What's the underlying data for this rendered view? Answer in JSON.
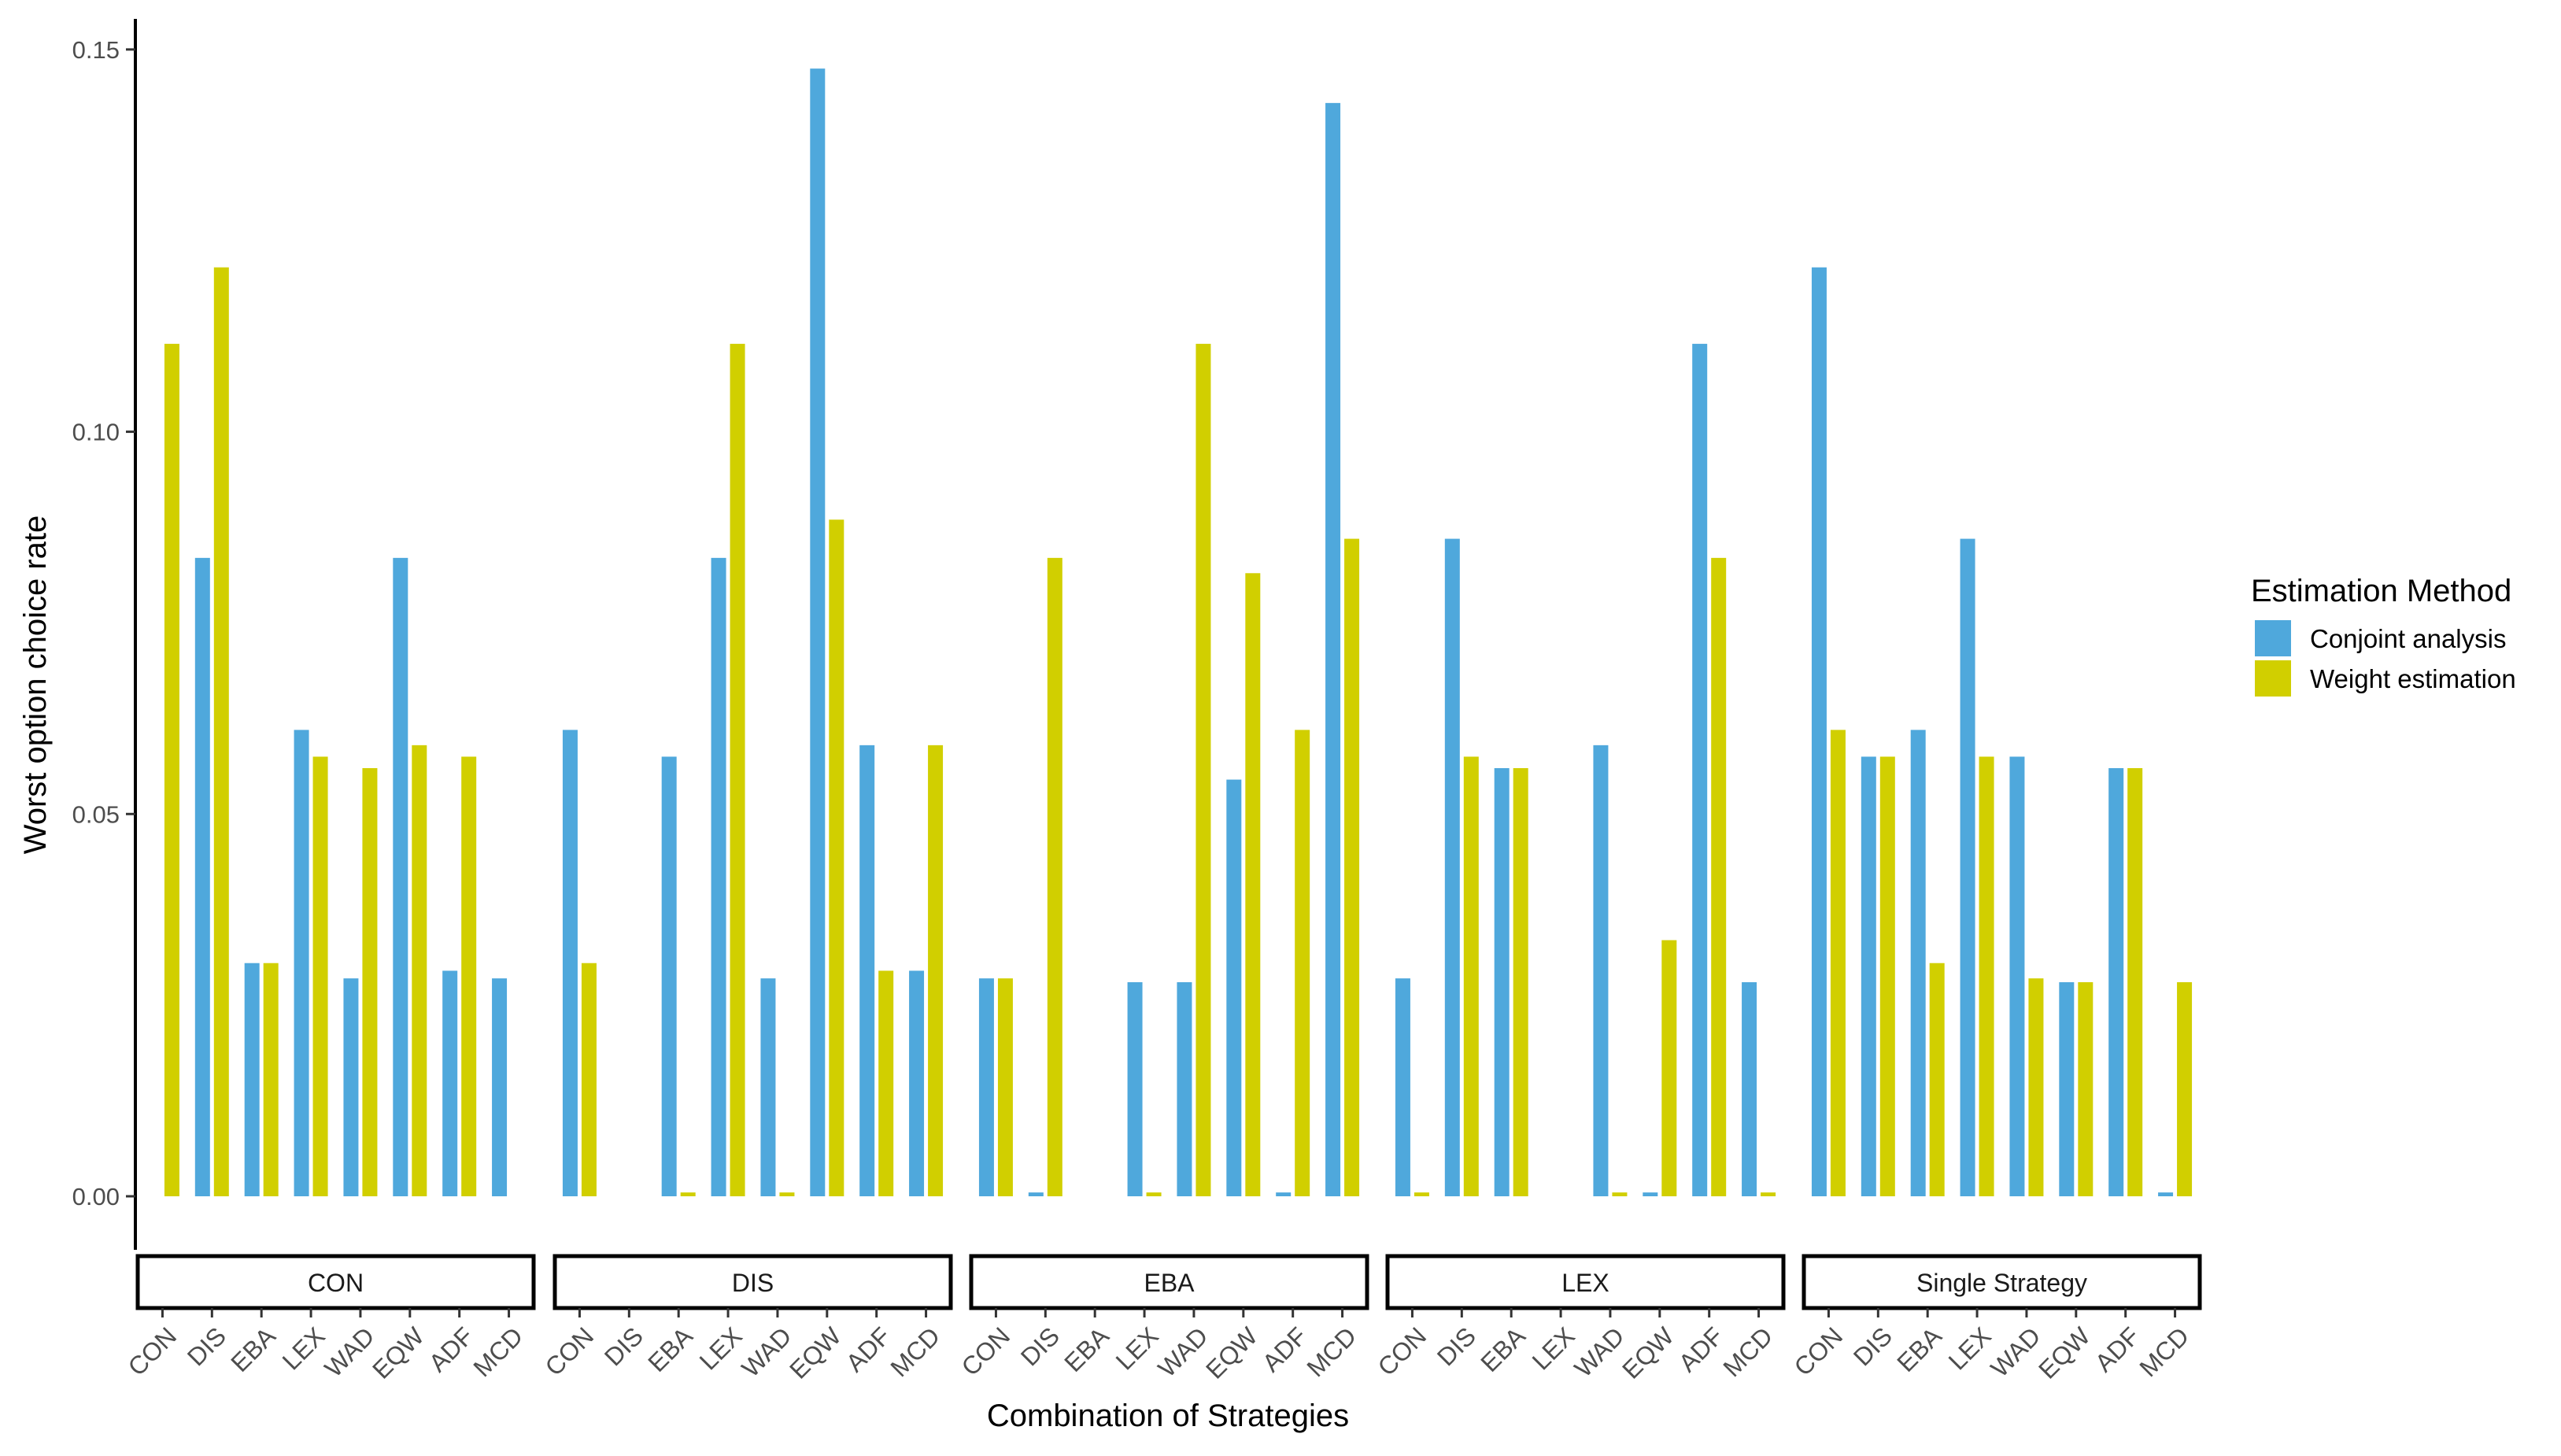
{
  "chart_data": {
    "type": "bar",
    "xlabel": "Combination of Strategies",
    "ylabel": "Worst option choice rate",
    "ylim": [
      -0.007,
      0.154
    ],
    "yticks": [
      "0.00",
      "0.05",
      "0.10",
      "0.15"
    ],
    "ytick_values": [
      0,
      0.05,
      0.1,
      0.15
    ],
    "categories": [
      "CON",
      "DIS",
      "EBA",
      "LEX",
      "WAD",
      "EQW",
      "ADF",
      "MCD"
    ],
    "legend": {
      "title": "Estimation Method",
      "position": "right",
      "entries": [
        "Conjoint analysis",
        "Weight estimation"
      ]
    },
    "colors": {
      "Conjoint analysis": "#4fa8dc",
      "Weight estimation": "#d1cf00"
    },
    "facets": [
      {
        "label": "CON",
        "series": [
          {
            "name": "Conjoint analysis",
            "values": [
              0,
              0.0835,
              0.0305,
              0.061,
              0.0285,
              0.0835,
              0.0295,
              0.0285
            ]
          },
          {
            "name": "Weight estimation",
            "values": [
              0.1115,
              0.1215,
              0.0305,
              0.0575,
              0.056,
              0.059,
              0.0575,
              0
            ]
          }
        ]
      },
      {
        "label": "DIS",
        "series": [
          {
            "name": "Conjoint analysis",
            "values": [
              0.061,
              0,
              0.0575,
              0.0835,
              0.0285,
              0.1475,
              0.059,
              0.0295
            ]
          },
          {
            "name": "Weight estimation",
            "values": [
              0.0305,
              0,
              0.0005,
              0.1115,
              0.0005,
              0.0885,
              0.0295,
              0.059
            ]
          }
        ]
      },
      {
        "label": "EBA",
        "series": [
          {
            "name": "Conjoint analysis",
            "values": [
              0.0285,
              0.0005,
              0,
              0.028,
              0.028,
              0.0545,
              0.0005,
              0.143
            ]
          },
          {
            "name": "Weight estimation",
            "values": [
              0.0285,
              0.0835,
              0,
              0.0005,
              0.1115,
              0.0815,
              0.061,
              0.086
            ]
          }
        ]
      },
      {
        "label": "LEX",
        "series": [
          {
            "name": "Conjoint analysis",
            "values": [
              0.0285,
              0.086,
              0.056,
              0,
              0.059,
              0.0005,
              0.1115,
              0.028
            ]
          },
          {
            "name": "Weight estimation",
            "values": [
              0.0005,
              0.0575,
              0.056,
              0,
              0.0005,
              0.0335,
              0.0835,
              0.0005
            ]
          }
        ]
      },
      {
        "label": "Single Strategy",
        "series": [
          {
            "name": "Conjoint analysis",
            "values": [
              0.1215,
              0.0575,
              0.061,
              0.086,
              0.0575,
              0.028,
              0.056,
              0.0005
            ]
          },
          {
            "name": "Weight estimation",
            "values": [
              0.061,
              0.0575,
              0.0305,
              0.0575,
              0.0285,
              0.028,
              0.056,
              0.028
            ]
          }
        ]
      }
    ]
  }
}
